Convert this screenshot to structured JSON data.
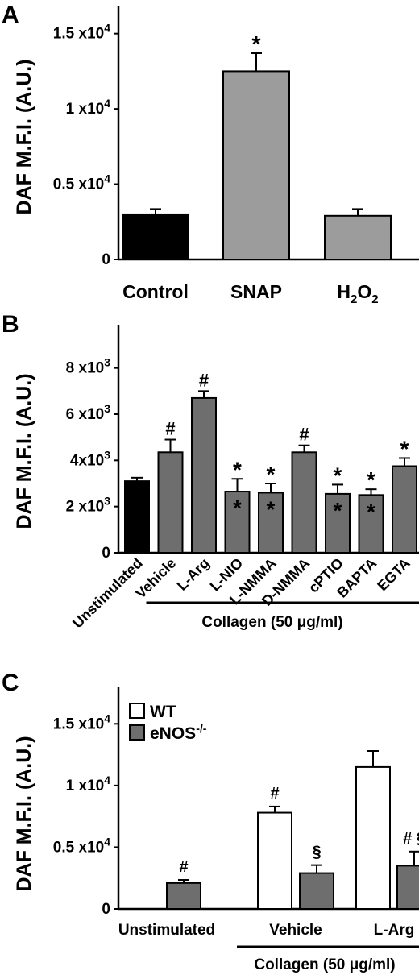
{
  "colors": {
    "black": "#000000",
    "gray": "#9c9c9c",
    "dark_gray": "#6e6e6e",
    "white": "#ffffff"
  },
  "chart_data": [
    {
      "panel": "A",
      "type": "bar",
      "ylabel": "DAF M.F.I. (A.U.)",
      "ylim": [
        0,
        16000
      ],
      "yticks": [
        {
          "value": 0,
          "label": "0",
          "exp": ""
        },
        {
          "value": 5000,
          "label": "0.5 x10",
          "exp": "4"
        },
        {
          "value": 10000,
          "label": "1 x10",
          "exp": "4"
        },
        {
          "value": 15000,
          "label": "1.5 x10",
          "exp": "4"
        }
      ],
      "categories": [
        "Control",
        "SNAP",
        "H2O2"
      ],
      "category_labels": [
        {
          "main": "Control"
        },
        {
          "main": "SNAP"
        },
        {
          "main": "H",
          "sub1": "2",
          "mid": "O",
          "sub2": "2"
        }
      ],
      "values": [
        3000,
        12500,
        2900
      ],
      "errors": [
        350,
        1200,
        450
      ],
      "bar_colors": [
        "#000000",
        "#9c9c9c",
        "#9c9c9c"
      ],
      "annotations": [
        {
          "category": 1,
          "text": "*"
        }
      ],
      "grid": false
    },
    {
      "panel": "B",
      "type": "bar",
      "ylabel": "DAF M.F.I. (A.U.)",
      "ylim": [
        0,
        9000
      ],
      "yticks": [
        {
          "value": 0,
          "label": "0",
          "exp": ""
        },
        {
          "value": 2000,
          "label": "2 x10",
          "exp": "3"
        },
        {
          "value": 4000,
          "label": "4x10",
          "exp": "3"
        },
        {
          "value": 6000,
          "label": "6 x10",
          "exp": "3"
        },
        {
          "value": 8000,
          "label": "8 x10",
          "exp": "3"
        }
      ],
      "categories": [
        "Unstimulated",
        "Vehicle",
        "L-Arg",
        "L-NIO",
        "L-NMMA",
        "D-NMMA",
        "cPTIO",
        "BAPTA",
        "EGTA"
      ],
      "values": [
        3100,
        4350,
        6700,
        2650,
        2600,
        4350,
        2550,
        2500,
        3750
      ],
      "errors": [
        150,
        550,
        300,
        550,
        400,
        300,
        400,
        250,
        350
      ],
      "bar_colors": [
        "#000000",
        "#6e6e6e",
        "#6e6e6e",
        "#6e6e6e",
        "#6e6e6e",
        "#6e6e6e",
        "#6e6e6e",
        "#6e6e6e",
        "#6e6e6e"
      ],
      "annotations": [
        {
          "category": 1,
          "text": "#",
          "position": "above"
        },
        {
          "category": 2,
          "text": "#",
          "position": "above"
        },
        {
          "category": 3,
          "text": "*",
          "position": "above"
        },
        {
          "category": 3,
          "text": "*",
          "position": "inside"
        },
        {
          "category": 4,
          "text": "*",
          "position": "above"
        },
        {
          "category": 4,
          "text": "*",
          "position": "inside"
        },
        {
          "category": 5,
          "text": "#",
          "position": "above"
        },
        {
          "category": 6,
          "text": "*",
          "position": "above"
        },
        {
          "category": 6,
          "text": "*",
          "position": "inside"
        },
        {
          "category": 7,
          "text": "*",
          "position": "above"
        },
        {
          "category": 7,
          "text": "*",
          "position": "inside"
        },
        {
          "category": 8,
          "text": "*",
          "position": "above"
        }
      ],
      "group_label": "Collagen (50 μg/ml)",
      "group_span": [
        1,
        8
      ],
      "grid": false
    },
    {
      "panel": "C",
      "type": "bar",
      "ylabel": "DAF M.F.I. (A.U.)",
      "ylim": [
        0,
        16000
      ],
      "yticks": [
        {
          "value": 0,
          "label": "0",
          "exp": ""
        },
        {
          "value": 5000,
          "label": "0.5 x10",
          "exp": "4"
        },
        {
          "value": 10000,
          "label": "1 x10",
          "exp": "4"
        },
        {
          "value": 15000,
          "label": "1.5 x10",
          "exp": "4"
        }
      ],
      "categories": [
        "Unstimulated",
        "Vehicle",
        "L-Arg"
      ],
      "series": [
        {
          "name": "WT",
          "color": "#ffffff",
          "values": [
            null,
            7800,
            11500
          ],
          "errors": [
            null,
            500,
            1300
          ]
        },
        {
          "name": "eNOS-/-",
          "color": "#6e6e6e",
          "values": [
            2100,
            2900,
            3500
          ],
          "errors": [
            250,
            650,
            1150
          ]
        }
      ],
      "legend_labels": [
        {
          "main": "WT",
          "sup": ""
        },
        {
          "main": "eNOS",
          "sup": "-/-"
        }
      ],
      "legend": "top-left",
      "annotations": [
        {
          "category": 0,
          "series": 1,
          "text": "#"
        },
        {
          "category": 1,
          "series": 0,
          "text": "#"
        },
        {
          "category": 1,
          "series": 1,
          "text": "§"
        },
        {
          "category": 2,
          "series": 1,
          "text": "# §"
        }
      ],
      "group_label": "Collagen (50 μg/ml)",
      "group_span": [
        1,
        2
      ],
      "grid": false
    }
  ]
}
